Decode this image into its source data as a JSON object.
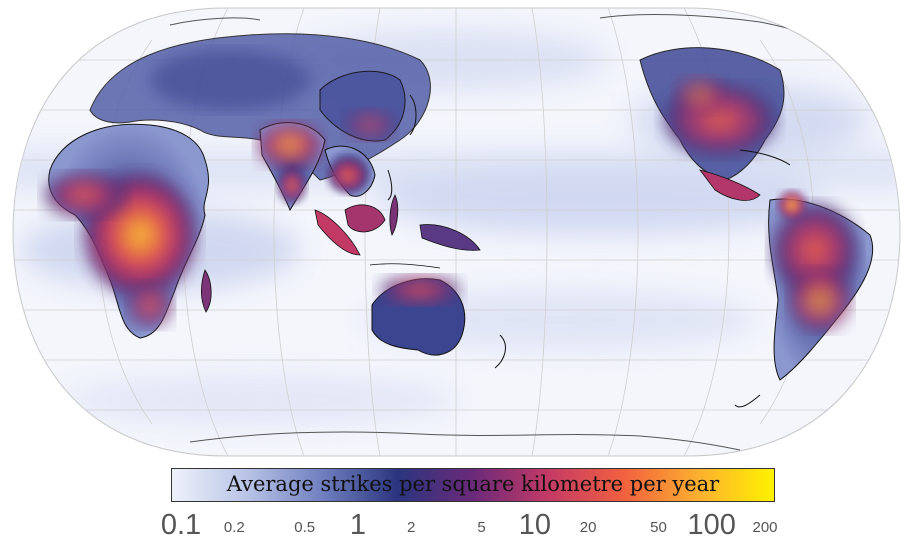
{
  "map": {
    "projection": "equal-earth",
    "center_longitude": "pacific",
    "legend_title": "Average strikes per square kilometre per year",
    "legend_units": "strikes per km² per year",
    "colorbar_stops": [
      "#eef2fb",
      "#b8c3e6",
      "#6f7fc0",
      "#2b357f",
      "#6b2a7a",
      "#c43a66",
      "#f1603f",
      "#fcb02f",
      "#fff200"
    ],
    "ocean_color": "#ffffff",
    "coastline_color": "#222222",
    "graticule_color": "#cfcfcf",
    "regions": [
      {
        "name": "central-africa-hotspot",
        "intensity": "100-200"
      },
      {
        "name": "south-asia-hotspot",
        "intensity": "20-100"
      },
      {
        "name": "maritime-continent-hotspot",
        "intensity": "20-100"
      },
      {
        "name": "north-america-hotspot",
        "intensity": "20-100"
      },
      {
        "name": "south-america-hotspot",
        "intensity": "20-100"
      },
      {
        "name": "northern-australia-hotspot",
        "intensity": "10-50"
      }
    ]
  },
  "scale": {
    "ticks": [
      {
        "label": "0.1",
        "value": 0.1,
        "major": true
      },
      {
        "label": "0.2",
        "value": 0.2,
        "major": false
      },
      {
        "label": "0.5",
        "value": 0.5,
        "major": false
      },
      {
        "label": "1",
        "value": 1,
        "major": true
      },
      {
        "label": "2",
        "value": 2,
        "major": false
      },
      {
        "label": "5",
        "value": 5,
        "major": false
      },
      {
        "label": "10",
        "value": 10,
        "major": true
      },
      {
        "label": "20",
        "value": 20,
        "major": false
      },
      {
        "label": "50",
        "value": 50,
        "major": false
      },
      {
        "label": "100",
        "value": 100,
        "major": true
      },
      {
        "label": "200",
        "value": 200,
        "major": false
      }
    ],
    "min": 0.1,
    "max": 200,
    "scale_type": "log"
  }
}
